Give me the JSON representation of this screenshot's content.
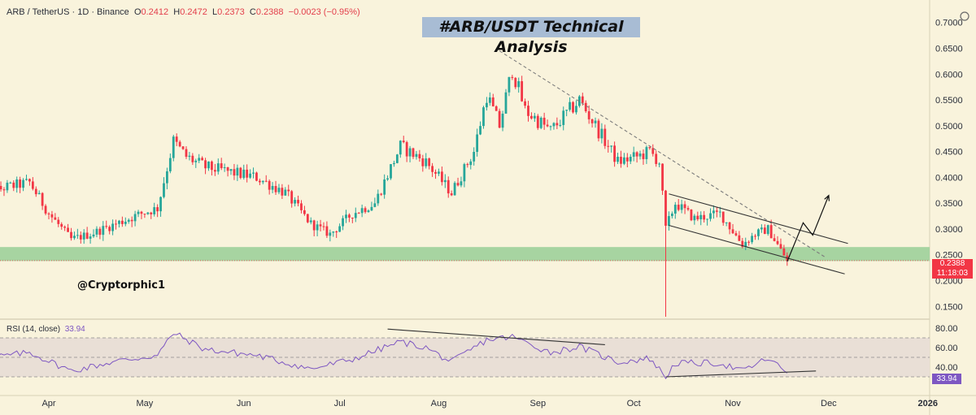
{
  "header": {
    "symbol": "ARB / TetherUS · 1D · Binance",
    "o_label": "O",
    "o_value": "0.2412",
    "h_label": "H",
    "h_value": "0.2472",
    "l_label": "L",
    "l_value": "0.2373",
    "c_label": "C",
    "c_value": "0.2388",
    "change": "−0.0023 (−0.95%)"
  },
  "title": "#ARB/USDT Technical Analysis",
  "author": "@Cryptorphic1",
  "price_tag": {
    "price": "0.2388",
    "countdown": "11:18:03"
  },
  "rsi": {
    "label": "RSI (14, close)",
    "value": "33.94"
  },
  "colors": {
    "up": "#26a69a",
    "down": "#f23645",
    "background": "#f9f3dc",
    "support_zone": "#9dd09a",
    "rsi_line": "#7e57c2",
    "title_bg": "#a8bcd4"
  },
  "chart_data": [
    {
      "type": "candlestick",
      "title": "#ARB/USDT Technical Analysis",
      "ylim": [
        0.13,
        0.72
      ],
      "y_ticks": [
        "0.7000",
        "0.6500",
        "0.6000",
        "0.5500",
        "0.5000",
        "0.4500",
        "0.4000",
        "0.3500",
        "0.3000",
        "0.2500",
        "0.2000",
        "0.1500"
      ],
      "x_ticks": [
        "Apr",
        "May",
        "Jun",
        "Jul",
        "Aug",
        "Sep",
        "Oct",
        "Nov",
        "Dec",
        "2026"
      ],
      "price_path": [
        {
          "date": "2025-03-10",
          "price": 0.36
        },
        {
          "date": "2025-03-18",
          "price": 0.38
        },
        {
          "date": "2025-03-26",
          "price": 0.39
        },
        {
          "date": "2025-04-01",
          "price": 0.33
        },
        {
          "date": "2025-04-08",
          "price": 0.28
        },
        {
          "date": "2025-04-14",
          "price": 0.29
        },
        {
          "date": "2025-04-22",
          "price": 0.31
        },
        {
          "date": "2025-04-30",
          "price": 0.33
        },
        {
          "date": "2025-05-05",
          "price": 0.34
        },
        {
          "date": "2025-05-10",
          "price": 0.47
        },
        {
          "date": "2025-05-14",
          "price": 0.44
        },
        {
          "date": "2025-05-20",
          "price": 0.42
        },
        {
          "date": "2025-05-28",
          "price": 0.41
        },
        {
          "date": "2025-06-05",
          "price": 0.4
        },
        {
          "date": "2025-06-14",
          "price": 0.37
        },
        {
          "date": "2025-06-22",
          "price": 0.31
        },
        {
          "date": "2025-06-28",
          "price": 0.29
        },
        {
          "date": "2025-07-05",
          "price": 0.33
        },
        {
          "date": "2025-07-12",
          "price": 0.35
        },
        {
          "date": "2025-07-20",
          "price": 0.46
        },
        {
          "date": "2025-07-28",
          "price": 0.43
        },
        {
          "date": "2025-08-05",
          "price": 0.37
        },
        {
          "date": "2025-08-12",
          "price": 0.45
        },
        {
          "date": "2025-08-16",
          "price": 0.56
        },
        {
          "date": "2025-08-20",
          "price": 0.5
        },
        {
          "date": "2025-08-24",
          "price": 0.61
        },
        {
          "date": "2025-08-28",
          "price": 0.53
        },
        {
          "date": "2025-09-05",
          "price": 0.49
        },
        {
          "date": "2025-09-14",
          "price": 0.55
        },
        {
          "date": "2025-09-20",
          "price": 0.49
        },
        {
          "date": "2025-09-26",
          "price": 0.43
        },
        {
          "date": "2025-10-02",
          "price": 0.44
        },
        {
          "date": "2025-10-06",
          "price": 0.45
        },
        {
          "date": "2025-10-09",
          "price": 0.43
        },
        {
          "date": "2025-10-11",
          "price": 0.3
        },
        {
          "date": "2025-10-14",
          "price": 0.35
        },
        {
          "date": "2025-10-20",
          "price": 0.32
        },
        {
          "date": "2025-10-28",
          "price": 0.33
        },
        {
          "date": "2025-11-04",
          "price": 0.27
        },
        {
          "date": "2025-11-08",
          "price": 0.29
        },
        {
          "date": "2025-11-12",
          "price": 0.3
        },
        {
          "date": "2025-11-18",
          "price": 0.2388
        }
      ],
      "flash_wick_low": 0.13,
      "support_zone": [
        0.238,
        0.265
      ],
      "annotations": [
        {
          "type": "descending_trendline",
          "from": {
            "date": "2025-08-20",
            "price": 0.645
          },
          "to": {
            "date": "2025-11-30",
            "price": 0.245
          }
        },
        {
          "type": "channel_upper",
          "from": {
            "date": "2025-10-12",
            "price": 0.368
          },
          "to": {
            "date": "2025-12-07",
            "price": 0.272
          }
        },
        {
          "type": "channel_lower",
          "from": {
            "date": "2025-10-12",
            "price": 0.307
          },
          "to": {
            "date": "2025-12-06",
            "price": 0.213
          }
        },
        {
          "type": "projection_arrow",
          "points": [
            {
              "date": "2025-11-18",
              "price": 0.237
            },
            {
              "date": "2025-11-23",
              "price": 0.312
            },
            {
              "date": "2025-11-26",
              "price": 0.288
            },
            {
              "date": "2025-12-01",
              "price": 0.365
            }
          ]
        }
      ]
    },
    {
      "type": "line",
      "title": "RSI (14, close)",
      "ylim": [
        20,
        85
      ],
      "y_ticks": [
        "80.00",
        "60.00",
        "40.00"
      ],
      "bands": [
        30,
        70
      ],
      "last_value": 33.94,
      "path": [
        {
          "date": "2025-03-10",
          "value": 48
        },
        {
          "date": "2025-03-26",
          "value": 55
        },
        {
          "date": "2025-04-08",
          "value": 36
        },
        {
          "date": "2025-04-22",
          "value": 46
        },
        {
          "date": "2025-05-05",
          "value": 52
        },
        {
          "date": "2025-05-10",
          "value": 75
        },
        {
          "date": "2025-05-20",
          "value": 58
        },
        {
          "date": "2025-06-05",
          "value": 52
        },
        {
          "date": "2025-06-22",
          "value": 38
        },
        {
          "date": "2025-07-05",
          "value": 48
        },
        {
          "date": "2025-07-20",
          "value": 66
        },
        {
          "date": "2025-07-28",
          "value": 60
        },
        {
          "date": "2025-08-05",
          "value": 45
        },
        {
          "date": "2025-08-16",
          "value": 68
        },
        {
          "date": "2025-08-24",
          "value": 71
        },
        {
          "date": "2025-09-05",
          "value": 55
        },
        {
          "date": "2025-09-14",
          "value": 61
        },
        {
          "date": "2025-09-26",
          "value": 45
        },
        {
          "date": "2025-10-06",
          "value": 49
        },
        {
          "date": "2025-10-11",
          "value": 30
        },
        {
          "date": "2025-10-14",
          "value": 44
        },
        {
          "date": "2025-10-28",
          "value": 44
        },
        {
          "date": "2025-11-04",
          "value": 36
        },
        {
          "date": "2025-11-12",
          "value": 49
        },
        {
          "date": "2025-11-18",
          "value": 33.94
        }
      ],
      "annotations": [
        {
          "type": "bearish_divergence_line",
          "from": {
            "date": "2025-07-16",
            "value": 79
          },
          "to": {
            "date": "2025-09-22",
            "value": 63
          }
        },
        {
          "type": "bullish_divergence_line",
          "from": {
            "date": "2025-10-11",
            "value": 30
          },
          "to": {
            "date": "2025-11-27",
            "value": 36
          }
        }
      ]
    }
  ]
}
